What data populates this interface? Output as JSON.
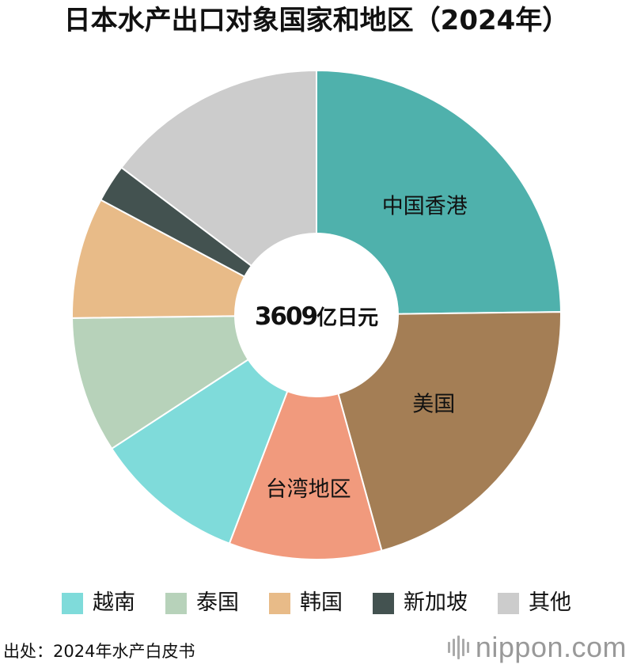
{
  "title": "日本水产出口对象国家和地区（2024年）",
  "center_label": {
    "number": "3609",
    "unit": "亿日元"
  },
  "source": "出处：2024年水产白皮书",
  "brand": "nippon.com",
  "chart_data": {
    "type": "pie",
    "total": 3609,
    "total_unit": "亿日元",
    "slices": [
      {
        "label": "中国香港",
        "value": 24.8,
        "color": "#4FB1AC",
        "show_label": true,
        "legend": false
      },
      {
        "label": "美国",
        "value": 20.9,
        "color": "#A47E55",
        "show_label": true,
        "legend": false
      },
      {
        "label": "台湾地区",
        "value": 10.1,
        "color": "#F19A7D",
        "show_label": true,
        "legend": false
      },
      {
        "label": "越南",
        "value": 10.0,
        "color": "#7FDBDA",
        "show_label": false,
        "legend": true
      },
      {
        "label": "泰国",
        "value": 9.0,
        "color": "#B7D2BA",
        "show_label": false,
        "legend": true
      },
      {
        "label": "韩国",
        "value": 8.0,
        "color": "#E8BB88",
        "show_label": false,
        "legend": true
      },
      {
        "label": "新加坡",
        "value": 2.5,
        "color": "#435250",
        "show_label": false,
        "legend": true
      },
      {
        "label": "其他",
        "value": 14.7,
        "color": "#CCCCCC",
        "show_label": false,
        "legend": true
      }
    ],
    "legend_position": "bottom",
    "donut_hole": true
  }
}
